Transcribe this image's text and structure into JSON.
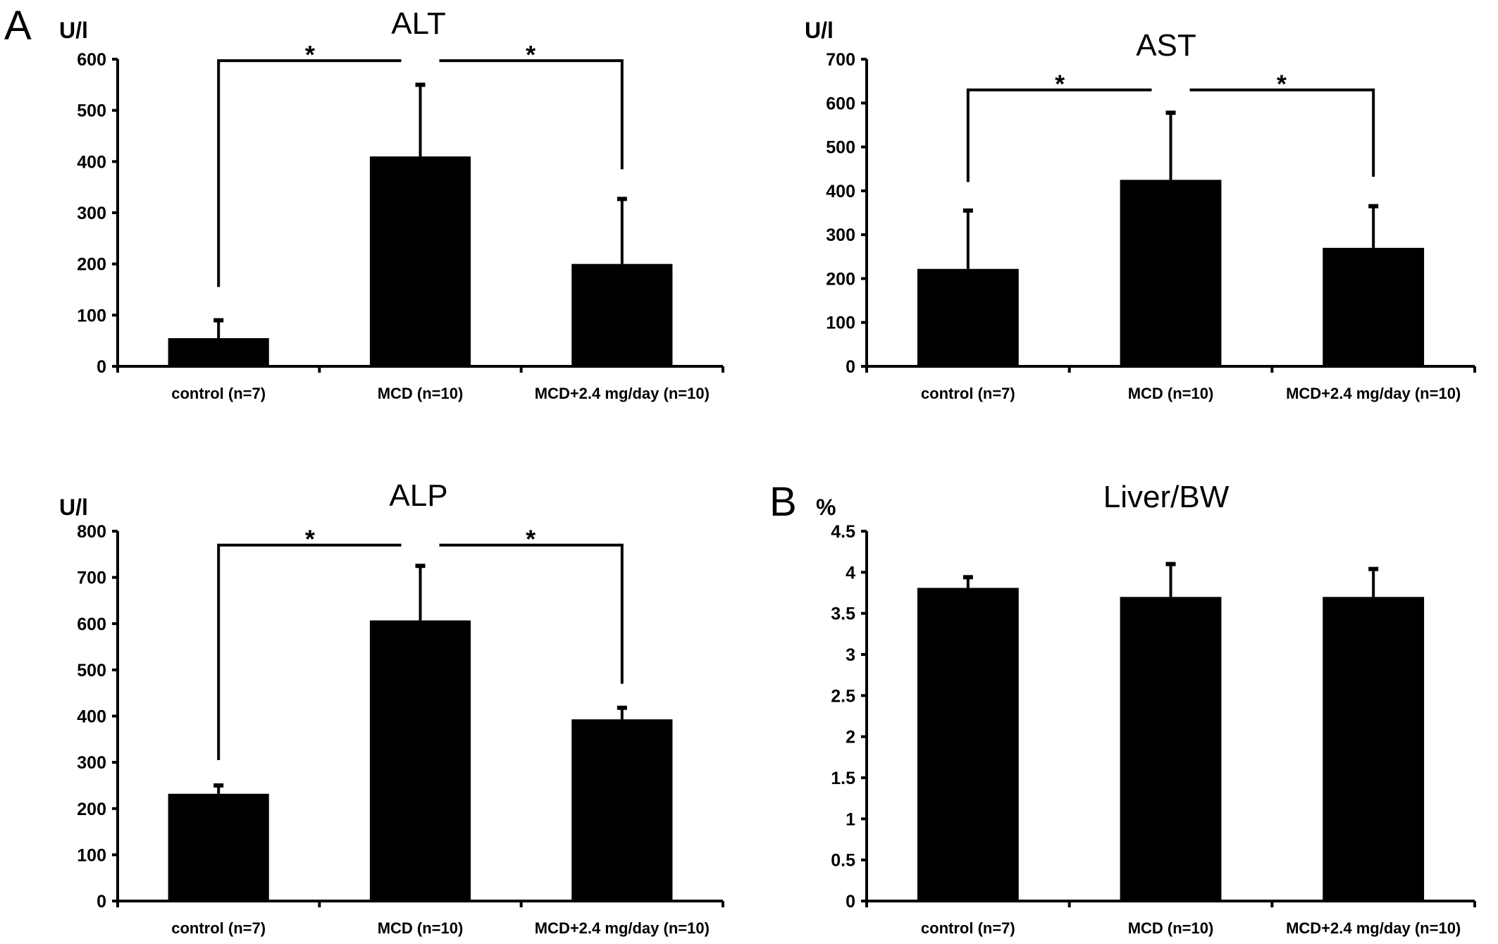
{
  "panel_labels": [
    "A",
    "B"
  ],
  "chart_data": [
    {
      "type": "bar",
      "title": "ALT",
      "ylabel": "U/l",
      "categories": [
        "control (n=7)",
        "MCD (n=10)",
        "MCD+2.4 mg/day (n=10)"
      ],
      "values": [
        55,
        410,
        200
      ],
      "errors": [
        35,
        140,
        127
      ],
      "ylim": [
        0,
        600
      ],
      "yticks": [
        "0",
        "100",
        "200",
        "300",
        "400",
        "500",
        "600"
      ],
      "ytick_values": [
        0,
        100,
        200,
        300,
        400,
        500,
        600
      ],
      "grid": false,
      "significance": {
        "symbol": "*",
        "bracket_value": 597,
        "drops": [
          155,
          385
        ]
      }
    },
    {
      "type": "bar",
      "title": "AST",
      "ylabel": "U/l",
      "categories": [
        "control (n=7)",
        "MCD (n=10)",
        "MCD+2.4 mg/day (n=10)"
      ],
      "values": [
        222,
        425,
        270
      ],
      "errors": [
        133,
        153,
        95
      ],
      "ylim": [
        0,
        700
      ],
      "yticks": [
        "0",
        "100",
        "200",
        "300",
        "400",
        "500",
        "600",
        "700"
      ],
      "ytick_values": [
        0,
        100,
        200,
        300,
        400,
        500,
        600,
        700
      ],
      "grid": false,
      "significance": {
        "symbol": "*",
        "bracket_value": 630,
        "drops": [
          420,
          432
        ]
      }
    },
    {
      "type": "bar",
      "title": "ALP",
      "ylabel": "U/l",
      "categories": [
        "control (n=7)",
        "MCD (n=10)",
        "MCD+2.4 mg/day (n=10)"
      ],
      "values": [
        232,
        607,
        393
      ],
      "errors": [
        18,
        118,
        25
      ],
      "ylim": [
        0,
        800
      ],
      "yticks": [
        "0",
        "100",
        "200",
        "300",
        "400",
        "500",
        "600",
        "700",
        "800"
      ],
      "ytick_values": [
        0,
        100,
        200,
        300,
        400,
        500,
        600,
        700,
        800
      ],
      "grid": false,
      "significance": {
        "symbol": "*",
        "bracket_value": 770,
        "drops": [
          305,
          470
        ]
      }
    },
    {
      "type": "bar",
      "title": "Liver/BW",
      "ylabel": "%",
      "categories": [
        "control (n=7)",
        "MCD (n=10)",
        "MCD+2.4 mg/day (n=10)"
      ],
      "values": [
        3.81,
        3.7,
        3.7
      ],
      "errors": [
        0.13,
        0.4,
        0.34
      ],
      "ylim": [
        0,
        4.5
      ],
      "yticks": [
        "0",
        "0.5",
        "1",
        "1.5",
        "2",
        "2.5",
        "3",
        "3.5",
        "4",
        "4.5"
      ],
      "ytick_values": [
        0,
        0.5,
        1,
        1.5,
        2,
        2.5,
        3,
        3.5,
        4,
        4.5
      ],
      "grid": false,
      "significance": null
    }
  ],
  "colors": {
    "bar": "#000000",
    "axis": "#000000",
    "background": "#ffffff"
  }
}
